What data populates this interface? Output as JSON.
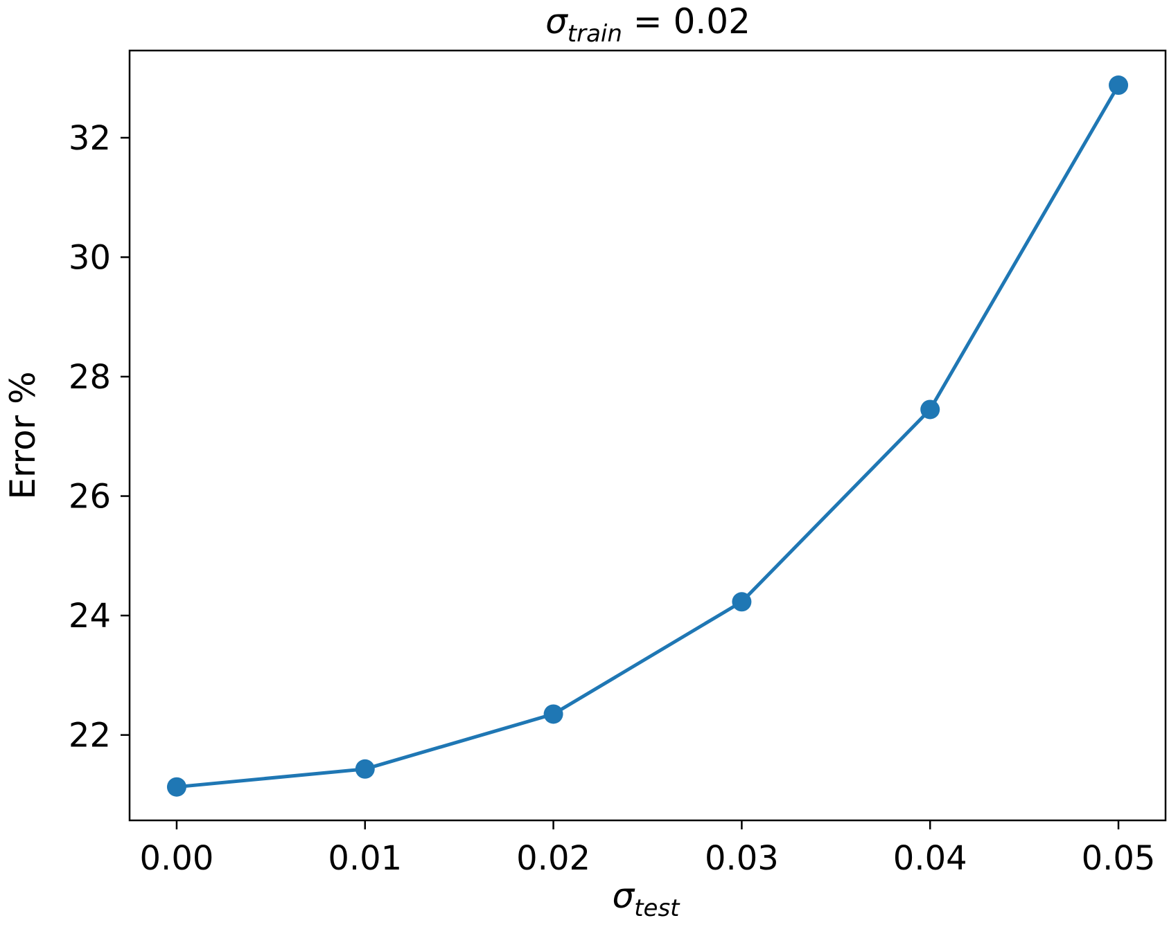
{
  "chart_data": {
    "type": "line",
    "title": {
      "symbol": "σ",
      "subscript": "train",
      "rest": " = 0.02"
    },
    "xlabel": {
      "symbol": "σ",
      "subscript": "test"
    },
    "ylabel": "Error %",
    "x": [
      0.0,
      0.01,
      0.02,
      0.03,
      0.04,
      0.05
    ],
    "x_tick_labels": [
      "0.00",
      "0.01",
      "0.02",
      "0.03",
      "0.04",
      "0.05"
    ],
    "y_ticks": [
      22,
      24,
      26,
      28,
      30,
      32
    ],
    "y_tick_labels": [
      "22",
      "24",
      "26",
      "28",
      "30",
      "32"
    ],
    "series": [
      {
        "values": [
          21.13,
          21.43,
          22.35,
          24.23,
          27.45,
          32.88
        ],
        "color": "#1f77b4",
        "marker": "circle"
      }
    ],
    "xlim": [
      -0.0025,
      0.0525
    ],
    "ylim": [
      20.57,
      33.46
    ],
    "grid": false,
    "legend": "none"
  }
}
